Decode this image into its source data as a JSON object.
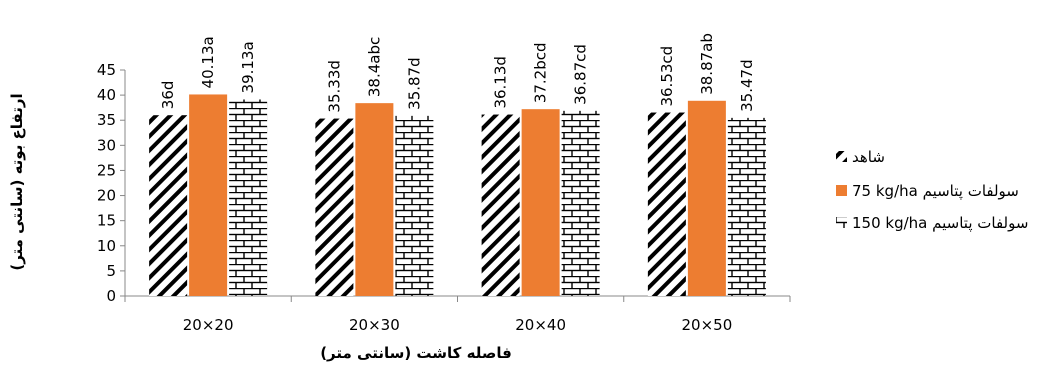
{
  "chart_data": {
    "type": "bar",
    "categories": [
      "20×20",
      "20×30",
      "20×40",
      "20×50"
    ],
    "series": [
      {
        "name": "شاهد",
        "values": [
          36,
          35.33,
          36.13,
          36.53
        ],
        "labels": [
          "36d",
          "35.33d",
          "36.13d",
          "36.53cd"
        ],
        "pattern": "diagonal-stripes",
        "color": "#000000"
      },
      {
        "name": "75 kg/ha سولفات پتاسیم",
        "values": [
          40.13,
          38.4,
          37.2,
          38.87
        ],
        "labels": [
          "40.13a",
          "38.4abc",
          "37.2bcd",
          "38.87ab"
        ],
        "pattern": "solid",
        "color": "#ED7D31"
      },
      {
        "name": "150 kg/ha سولفات پتاسیم",
        "values": [
          39.13,
          35.87,
          36.87,
          35.47
        ],
        "labels": [
          "39.13a",
          "35.87d",
          "36.87cd",
          "35.47d"
        ],
        "pattern": "brick",
        "color": "#000000"
      }
    ],
    "xlabel": "فاصله کاشت (سانتی متر)",
    "ylabel": "ارتفاع بوته (سانتی متر)",
    "ylim": [
      0,
      45
    ],
    "yticks": [
      "0",
      "5",
      "10",
      "15",
      "20",
      "25",
      "30",
      "35",
      "40",
      "45"
    ],
    "grid": false,
    "legend_position": "right"
  }
}
